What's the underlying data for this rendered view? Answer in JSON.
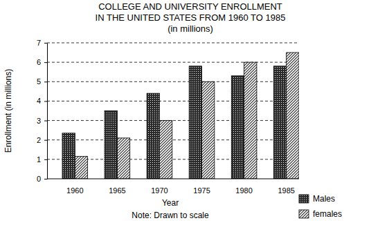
{
  "chart_data": {
    "type": "bar",
    "title": [
      "COLLEGE AND UNIVERSITY ENROLLMENT",
      "IN THE UNITED STATES FROM 1960 TO 1985"
    ],
    "subtitle": "(in millions)",
    "x_label": "Year",
    "y_label": "Enrollment (in millions)",
    "annotation": "Note: Drawn to scale",
    "categories": [
      "1960",
      "1965",
      "1970",
      "1975",
      "1980",
      "1985"
    ],
    "series": [
      {
        "name": "Males",
        "color": "#2a2a2a",
        "values": [
          2.35,
          3.5,
          4.4,
          5.8,
          5.3,
          5.8
        ]
      },
      {
        "name": "females",
        "color": "#2a2a2a",
        "values": [
          1.15,
          2.1,
          3.0,
          5.0,
          6.0,
          6.5
        ]
      }
    ],
    "ylim": [
      0,
      7
    ],
    "yticks": [
      0,
      1,
      2,
      3,
      4,
      5,
      6,
      7
    ],
    "grid": true,
    "legend": "bottom-right"
  }
}
